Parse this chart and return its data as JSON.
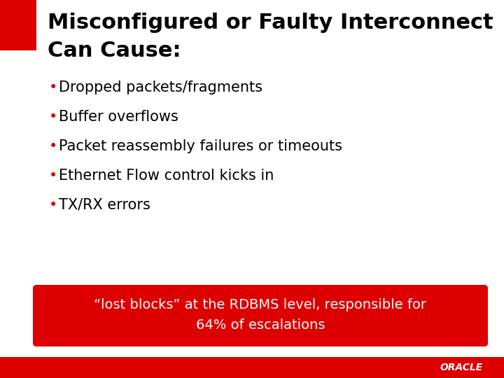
{
  "bg_color": "#ffffff",
  "title_line1": "Misconfigured or Faulty Interconnect",
  "title_line2": "Can Cause:",
  "title_color": "#000000",
  "title_fontsize": 22,
  "title_fontweight": "bold",
  "red_bar_color": "#dd0000",
  "bullet_items": [
    "Dropped packets/fragments",
    "Buffer overflows",
    "Packet reassembly failures or timeouts",
    "Ethernet Flow control kicks in",
    "TX/RX errors"
  ],
  "bullet_color": "#000000",
  "bullet_fontsize": 15,
  "bullet_dot_color": "#dd0000",
  "callout_bg": "#dd0000",
  "callout_text_line1": "“lost blocks” at the RDBMS level, responsible for",
  "callout_text_line2": "64% of escalations",
  "callout_text_color": "#ffffff",
  "callout_fontsize": 14,
  "footer_bg": "#dd0000",
  "footer_text": "ORACLE",
  "footer_text_color": "#ffffff",
  "footer_fontsize": 10
}
